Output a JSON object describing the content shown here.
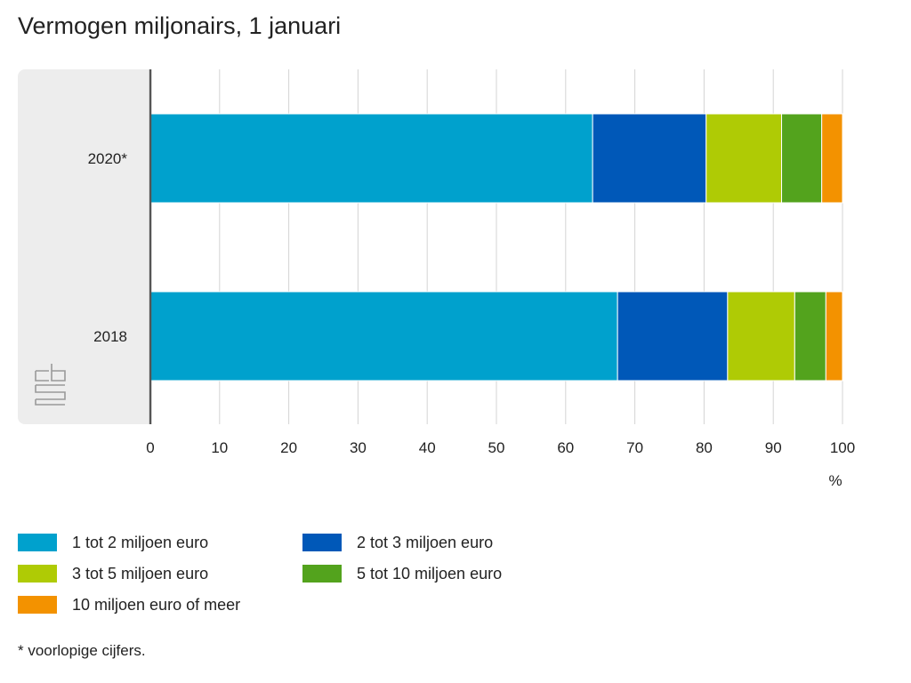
{
  "chart_data": {
    "type": "bar",
    "orientation": "horizontal",
    "stacked": true,
    "title": "Vermogen miljonairs, 1 januari",
    "xlabel": "%",
    "ylabel": "",
    "xlim": [
      0,
      100
    ],
    "x_ticks": [
      "0",
      "10",
      "20",
      "30",
      "40",
      "50",
      "60",
      "70",
      "80",
      "90",
      "100"
    ],
    "categories": [
      "2020*",
      "2018"
    ],
    "series": [
      {
        "name": "1 tot 2 miljoen euro",
        "color": "#00a1cd",
        "values": [
          63.9,
          67.5
        ]
      },
      {
        "name": "2 tot 3 miljoen euro",
        "color": "#0058b8",
        "values": [
          16.4,
          15.9
        ]
      },
      {
        "name": "3 tot 5 miljoen euro",
        "color": "#afcb05",
        "values": [
          10.9,
          9.7
        ]
      },
      {
        "name": "5 tot 10 miljoen euro",
        "color": "#53a31d",
        "values": [
          5.8,
          4.5
        ]
      },
      {
        "name": "10 miljoen euro of meer",
        "color": "#f39200",
        "values": [
          3.0,
          2.4
        ]
      }
    ],
    "grid": true,
    "legend_position": "bottom"
  },
  "footnote": "* voorlopige cijfers."
}
